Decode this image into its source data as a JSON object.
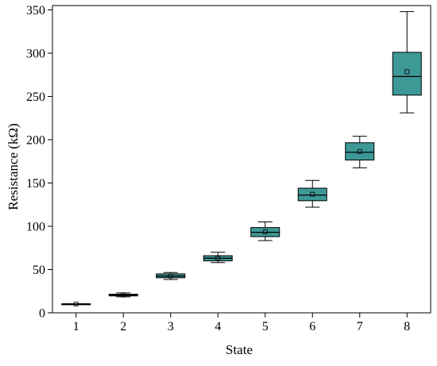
{
  "chart_data": {
    "type": "box",
    "xlabel": "State",
    "ylabel": "Resistance (kΩ)",
    "categories": [
      "1",
      "2",
      "3",
      "4",
      "5",
      "6",
      "7",
      "8"
    ],
    "ylim": [
      0,
      355
    ],
    "yticks": [
      0,
      50,
      100,
      150,
      200,
      250,
      300,
      350
    ],
    "grid": false,
    "legend": "none",
    "box_fill_color": "#3d9896",
    "box_stroke_color": "#000000",
    "boxes": [
      {
        "category": "1",
        "min": 10.2,
        "q1": 10.2,
        "median": 10.2,
        "q3": 10.4,
        "max": 10.4,
        "mean": 10.2
      },
      {
        "category": "2",
        "min": 18.5,
        "q1": 19.5,
        "median": 20.5,
        "q3": 21.5,
        "max": 23.0,
        "mean": 20.5
      },
      {
        "category": "3",
        "min": 38.5,
        "q1": 40.5,
        "median": 42.5,
        "q3": 45.0,
        "max": 46.5,
        "mean": 42.5
      },
      {
        "category": "4",
        "min": 58.0,
        "q1": 60.0,
        "median": 63.0,
        "q3": 66.0,
        "max": 70.0,
        "mean": 63.0
      },
      {
        "category": "5",
        "min": 83.5,
        "q1": 88.0,
        "median": 93.0,
        "q3": 98.5,
        "max": 105.0,
        "mean": 93.5
      },
      {
        "category": "6",
        "min": 122.0,
        "q1": 129.5,
        "median": 136.0,
        "q3": 144.0,
        "max": 153.0,
        "mean": 137.0
      },
      {
        "category": "7",
        "min": 167.5,
        "q1": 176.5,
        "median": 185.5,
        "q3": 196.5,
        "max": 204.0,
        "mean": 186.5
      },
      {
        "category": "8",
        "min": 231.0,
        "q1": 251.5,
        "median": 273.0,
        "q3": 301.0,
        "max": 348.0,
        "mean": 278.5
      }
    ]
  }
}
